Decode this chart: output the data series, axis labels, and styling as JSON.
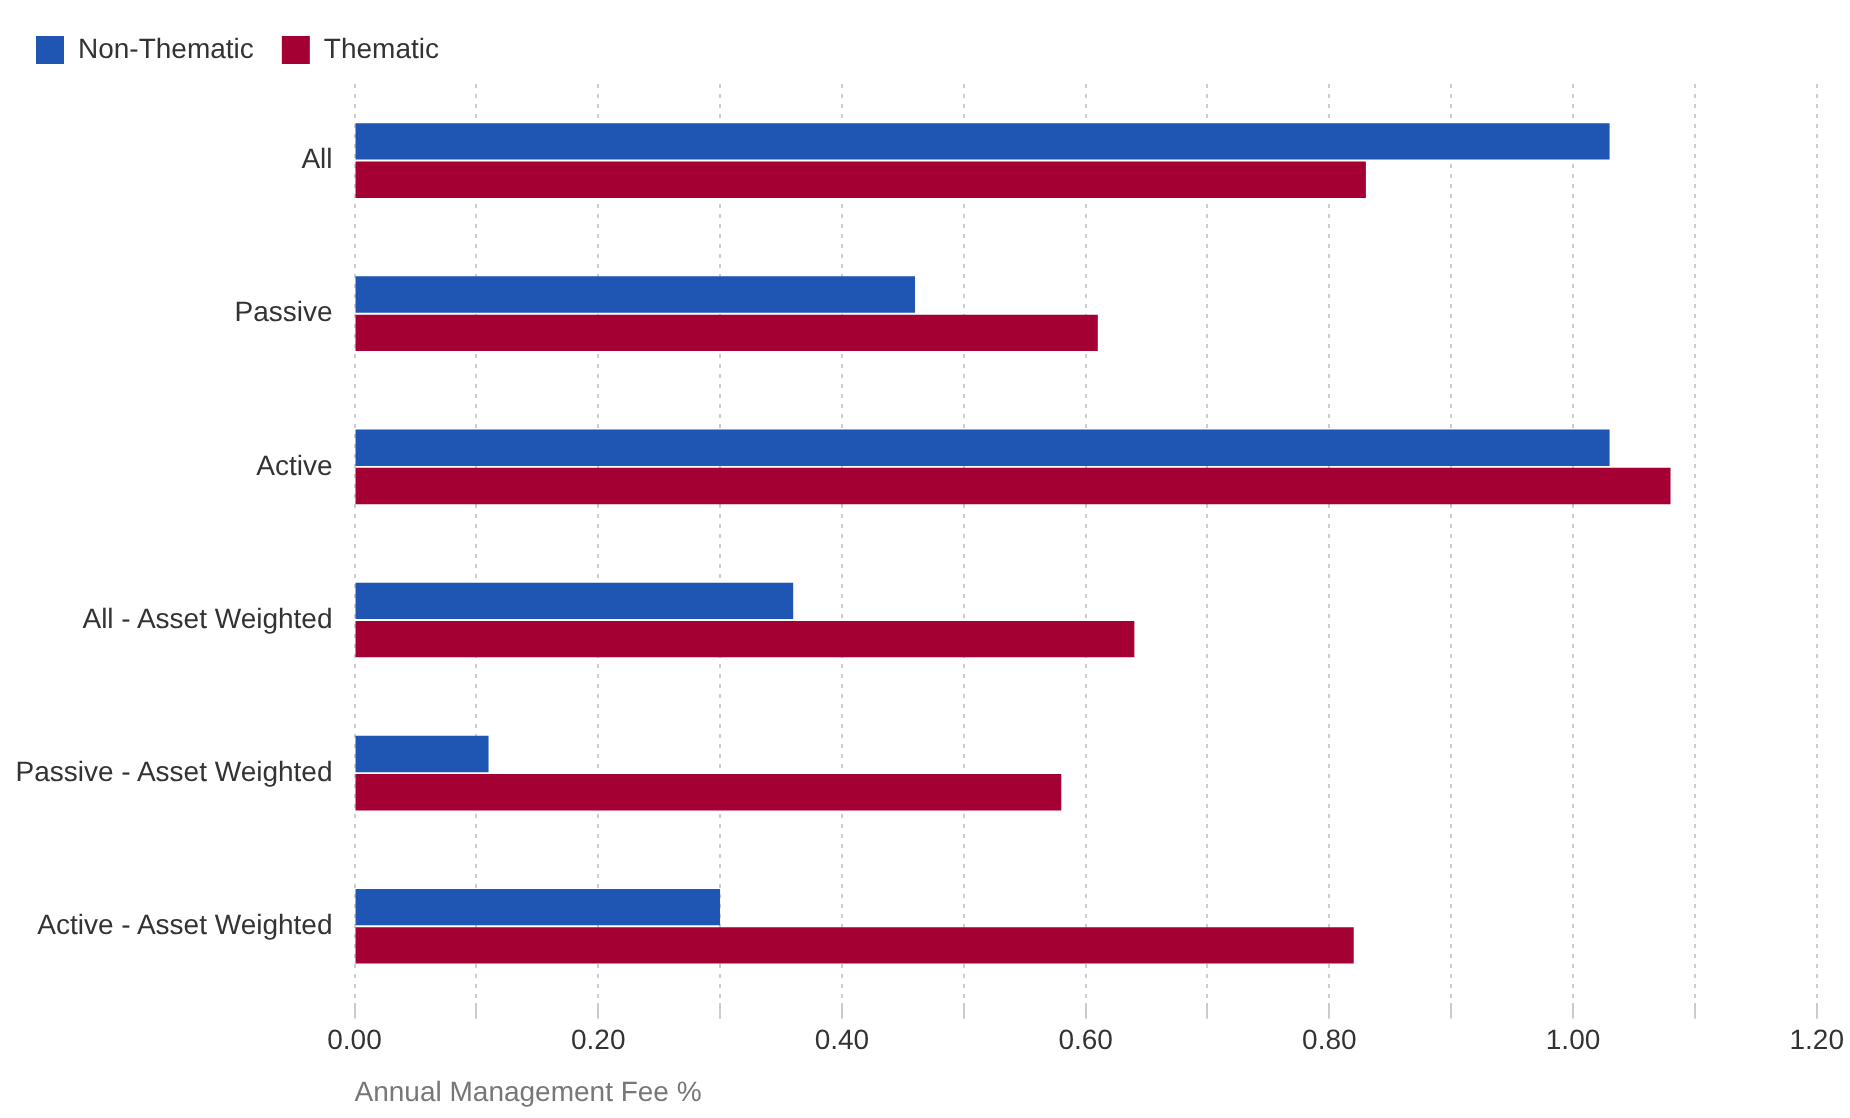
{
  "chart_data": {
    "type": "bar",
    "orientation": "horizontal",
    "xlabel": "Annual Management Fee %",
    "categories": [
      "All",
      "Passive",
      "Active",
      "All - Asset Weighted",
      "Passive - Asset Weighted",
      "Active - Asset Weighted"
    ],
    "series": [
      {
        "name": "Non-Thematic",
        "color": "#1f55b3",
        "values": [
          1.03,
          0.46,
          1.03,
          0.36,
          0.11,
          0.3
        ]
      },
      {
        "name": "Thematic",
        "color": "#a50034",
        "values": [
          0.83,
          0.61,
          1.08,
          0.64,
          0.58,
          0.82
        ]
      }
    ],
    "xlim": [
      0,
      1.2
    ],
    "xticks": [
      {
        "value": 0,
        "label": "0.00"
      },
      {
        "value": 0.1,
        "label": null
      },
      {
        "value": 0.2,
        "label": "0.20"
      },
      {
        "value": 0.3,
        "label": null
      },
      {
        "value": 0.4,
        "label": "0.40"
      },
      {
        "value": 0.5,
        "label": null
      },
      {
        "value": 0.6,
        "label": "0.60"
      },
      {
        "value": 0.7,
        "label": null
      },
      {
        "value": 0.8,
        "label": "0.80"
      },
      {
        "value": 0.9,
        "label": null
      },
      {
        "value": 1.0,
        "label": "1.00"
      },
      {
        "value": 1.1,
        "label": null
      },
      {
        "value": 1.2,
        "label": "1.20"
      }
    ],
    "grid": "x",
    "legend": "top left"
  }
}
